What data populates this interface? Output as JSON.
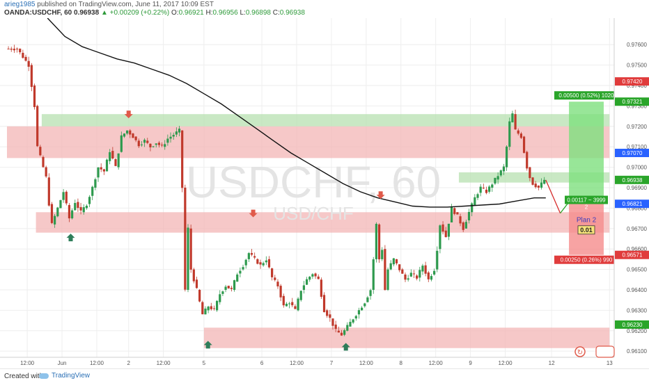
{
  "header": {
    "author": "arieg1985",
    "published_text": "published on TradingView.com, June 11, 2017 10:09 EST",
    "symbol": "OANDA:USDCHF, 60",
    "last": "0.96938",
    "change": "▲ +0.00209 (+0.22%)",
    "o_label": "O:",
    "o": "0.96921",
    "h_label": "H:",
    "h": "0.96956",
    "l_label": "L:",
    "l": "0.96898",
    "c_label": "C:",
    "c": "0.96938"
  },
  "footer": {
    "created_with": "Created with",
    "brand": "TradingView"
  },
  "chart_data": {
    "type": "candlestick",
    "watermark_symbol": "USDCHF, 60",
    "watermark_pair": "USD/CHF",
    "ylim": [
      0.9607,
      0.9773
    ],
    "y_ticks": [
      "0.97600",
      "0.97500",
      "0.97400",
      "0.97300",
      "0.97200",
      "0.97100",
      "0.97000",
      "0.96900",
      "0.96800",
      "0.96700",
      "0.96600",
      "0.96500",
      "0.96400",
      "0.96300",
      "0.96200",
      "0.96100"
    ],
    "x_range": [
      0,
      100
    ],
    "x_ticks": [
      {
        "x": 3.5,
        "label": "12:00"
      },
      {
        "x": 9.5,
        "label": "Jun"
      },
      {
        "x": 15.5,
        "label": "12:00"
      },
      {
        "x": 21,
        "label": "2"
      },
      {
        "x": 27,
        "label": "12:00"
      },
      {
        "x": 34,
        "label": "5"
      },
      {
        "x": 44,
        "label": "6"
      },
      {
        "x": 50,
        "label": "12:00"
      },
      {
        "x": 56,
        "label": "7"
      },
      {
        "x": 62,
        "label": "12:00"
      },
      {
        "x": 68,
        "label": "8"
      },
      {
        "x": 74,
        "label": "12:00"
      },
      {
        "x": 80,
        "label": "9"
      },
      {
        "x": 86,
        "label": "12:00"
      },
      {
        "x": 94,
        "label": "12"
      },
      {
        "x": 104,
        "label": "13"
      }
    ],
    "price_labels": [
      {
        "value": 0.9742,
        "text": "0.97420",
        "color": "#e03c3c"
      },
      {
        "value": 0.97321,
        "text": "0.97321",
        "color": "#2aa52a"
      },
      {
        "value": 0.9707,
        "text": "0.97070",
        "color": "#2962ff"
      },
      {
        "value": 0.96938,
        "text": "0.96938",
        "color": "#2aa52a"
      },
      {
        "value": 0.96821,
        "text": "0.96821",
        "color": "#2962ff"
      },
      {
        "value": 0.96571,
        "text": "0.96571",
        "color": "#e03c3c"
      },
      {
        "value": 0.9623,
        "text": "0.96230",
        "color": "#2aa52a"
      }
    ],
    "zones": [
      {
        "x0": 6,
        "x1": 104,
        "y0": 0.9726,
        "y1": 0.972,
        "color": "#b7e0b0"
      },
      {
        "x0": 0,
        "x1": 104,
        "y0": 0.972,
        "y1": 0.97045,
        "color": "#f3b5b5"
      },
      {
        "x0": 5,
        "x1": 104,
        "y0": 0.9678,
        "y1": 0.9668,
        "color": "#f3b5b5"
      },
      {
        "x0": 34,
        "x1": 104,
        "y0": 0.96215,
        "y1": 0.96115,
        "color": "#f3b5b5"
      },
      {
        "x0": 78,
        "x1": 104,
        "y0": 0.96975,
        "y1": 0.96925,
        "color": "#b7e0b0"
      }
    ],
    "arrows": [
      {
        "x": 21,
        "y": 0.9725,
        "dir": "down",
        "color": "#e05a4a"
      },
      {
        "x": 42.5,
        "y": 0.96765,
        "dir": "down",
        "color": "#e05a4a"
      },
      {
        "x": 64.5,
        "y": 0.96855,
        "dir": "down",
        "color": "#e05a4a"
      },
      {
        "x": 11,
        "y": 0.96665,
        "dir": "up",
        "color": "#2e7d5a"
      },
      {
        "x": 34.7,
        "y": 0.9614,
        "dir": "up",
        "color": "#2e7d5a"
      },
      {
        "x": 58.5,
        "y": 0.9613,
        "dir": "up",
        "color": "#2e7d5a"
      }
    ],
    "ma_line": [
      [
        7,
        0.9773
      ],
      [
        10,
        0.9764
      ],
      [
        13,
        0.9759
      ],
      [
        16,
        0.9756
      ],
      [
        19,
        0.9753
      ],
      [
        22,
        0.9751
      ],
      [
        25,
        0.9748
      ],
      [
        28,
        0.9745
      ],
      [
        31,
        0.9741
      ],
      [
        34,
        0.9736
      ],
      [
        37,
        0.9731
      ],
      [
        40,
        0.9725
      ],
      [
        43,
        0.9719
      ],
      [
        46,
        0.9713
      ],
      [
        49,
        0.9707
      ],
      [
        52,
        0.9702
      ],
      [
        55,
        0.9697
      ],
      [
        58,
        0.9692
      ],
      [
        61,
        0.9688
      ],
      [
        64,
        0.9685
      ],
      [
        67,
        0.9683
      ],
      [
        70,
        0.9681
      ],
      [
        73,
        0.96805
      ],
      [
        76,
        0.96805
      ],
      [
        79,
        0.9681
      ],
      [
        82,
        0.96815
      ],
      [
        85,
        0.9682
      ],
      [
        88,
        0.96835
      ],
      [
        91,
        0.9685
      ],
      [
        93,
        0.9685
      ]
    ],
    "candles_path": [
      [
        0,
        0.9758
      ],
      [
        2,
        0.9758
      ],
      [
        3,
        0.9754
      ],
      [
        4,
        0.975
      ],
      [
        5,
        0.973
      ],
      [
        5.5,
        0.971
      ],
      [
        6,
        0.9705
      ],
      [
        7,
        0.9695
      ],
      [
        7.5,
        0.9682
      ],
      [
        8,
        0.9672
      ],
      [
        9,
        0.968
      ],
      [
        10,
        0.9688
      ],
      [
        11,
        0.9675
      ],
      [
        12,
        0.9683
      ],
      [
        13,
        0.9678
      ],
      [
        14,
        0.9682
      ],
      [
        15,
        0.969
      ],
      [
        16,
        0.97
      ],
      [
        17,
        0.9698
      ],
      [
        18,
        0.9708
      ],
      [
        19,
        0.97
      ],
      [
        20,
        0.9715
      ],
      [
        21,
        0.9718
      ],
      [
        22,
        0.9715
      ],
      [
        23,
        0.9711
      ],
      [
        24,
        0.9713
      ],
      [
        25,
        0.971
      ],
      [
        26,
        0.9712
      ],
      [
        27,
        0.971
      ],
      [
        28,
        0.9714
      ],
      [
        29,
        0.9716
      ],
      [
        30,
        0.9718
      ],
      [
        30.5,
        0.969
      ],
      [
        31,
        0.964
      ],
      [
        31.5,
        0.967
      ],
      [
        32,
        0.965
      ],
      [
        33,
        0.964
      ],
      [
        34,
        0.9628
      ],
      [
        35,
        0.9632
      ],
      [
        36,
        0.963
      ],
      [
        37,
        0.9638
      ],
      [
        38,
        0.9642
      ],
      [
        39,
        0.964
      ],
      [
        40,
        0.9648
      ],
      [
        41,
        0.9652
      ],
      [
        42,
        0.9658
      ],
      [
        43,
        0.9655
      ],
      [
        44,
        0.9652
      ],
      [
        45,
        0.9655
      ],
      [
        46,
        0.9646
      ],
      [
        47,
        0.9642
      ],
      [
        48,
        0.9632
      ],
      [
        49,
        0.9634
      ],
      [
        50,
        0.963
      ],
      [
        51,
        0.964
      ],
      [
        52,
        0.9645
      ],
      [
        53,
        0.9648
      ],
      [
        54,
        0.9645
      ],
      [
        55,
        0.963
      ],
      [
        56,
        0.9626
      ],
      [
        57,
        0.962
      ],
      [
        58,
        0.9618
      ],
      [
        59,
        0.9622
      ],
      [
        60,
        0.9626
      ],
      [
        61,
        0.963
      ],
      [
        62,
        0.9634
      ],
      [
        63,
        0.964
      ],
      [
        63.5,
        0.9655
      ],
      [
        64,
        0.9672
      ],
      [
        64.5,
        0.9655
      ],
      [
        65,
        0.966
      ],
      [
        65.5,
        0.964
      ],
      [
        66,
        0.965
      ],
      [
        67,
        0.9655
      ],
      [
        68,
        0.965
      ],
      [
        69,
        0.9645
      ],
      [
        70,
        0.9648
      ],
      [
        71,
        0.9646
      ],
      [
        72,
        0.9652
      ],
      [
        73,
        0.9645
      ],
      [
        74,
        0.965
      ],
      [
        74.5,
        0.966
      ],
      [
        75,
        0.9672
      ],
      [
        76,
        0.9666
      ],
      [
        77,
        0.968
      ],
      [
        78,
        0.9676
      ],
      [
        79,
        0.967
      ],
      [
        80,
        0.9678
      ],
      [
        81,
        0.9685
      ],
      [
        82,
        0.969
      ],
      [
        83,
        0.9688
      ],
      [
        84,
        0.9692
      ],
      [
        85,
        0.9696
      ],
      [
        86,
        0.97
      ],
      [
        86.5,
        0.971
      ],
      [
        87,
        0.9722
      ],
      [
        87.5,
        0.9726
      ],
      [
        88,
        0.9718
      ],
      [
        89,
        0.9715
      ],
      [
        90,
        0.97
      ],
      [
        90.5,
        0.9695
      ],
      [
        91,
        0.9692
      ],
      [
        92,
        0.969
      ],
      [
        93,
        0.96938
      ]
    ],
    "forecast": {
      "arrow_down": [
        [
          93,
          0.96938
        ],
        [
          95.5,
          0.96775
        ]
      ],
      "arrow_up": [
        [
          95.5,
          0.96775
        ],
        [
          97,
          0.9683
        ]
      ],
      "profit_box": {
        "x0": 97,
        "x1": 103,
        "y_top": 0.97321,
        "y_bottom": 0.96821,
        "color": "#7ee07e"
      },
      "loss_box": {
        "x0": 97,
        "x1": 103,
        "y_top": 0.96821,
        "y_bottom": 0.96571,
        "color": "#f58c8c"
      },
      "profit_label": "0.00500 (0.52%) 1020",
      "mid_label": "0.00117 ~ 3999",
      "mid_label2": "2",
      "loss_label": "0.00250 (0.26%) 990",
      "plan_label": "Plan 2",
      "lot_label": "0.01"
    }
  }
}
